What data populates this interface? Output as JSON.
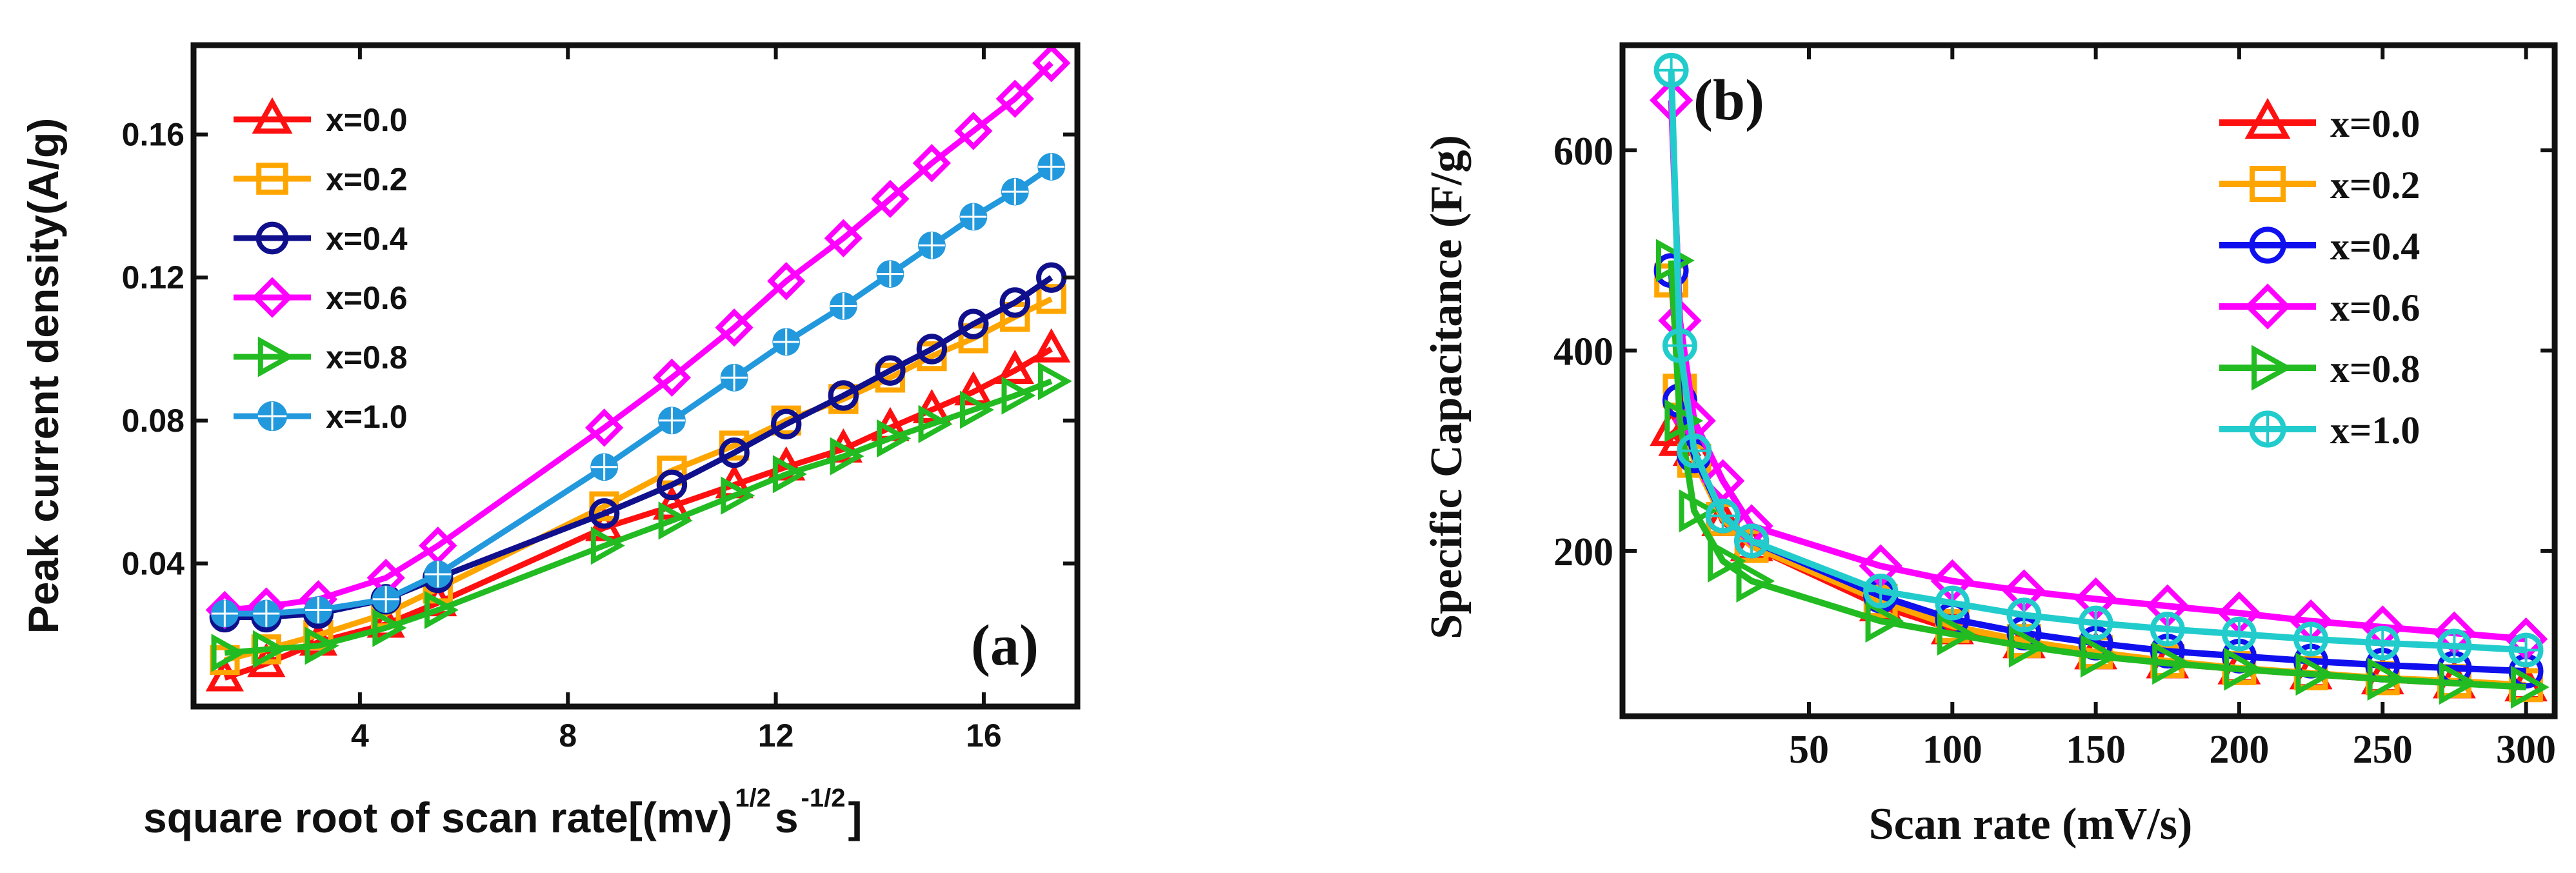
{
  "chart_data": [
    {
      "type": "line",
      "panel": "(a)",
      "title": "",
      "xlabel": "square root of scan rate[(mv)",
      "xlabel_sup1": "1/2",
      "xlabel_mid": "s",
      "xlabel_sup2": "-1/2",
      "xlabel_end": "]",
      "ylabel": "Peak current density(A/g)",
      "xlim": [
        0.8,
        17.8
      ],
      "ylim": [
        0.0,
        0.185
      ],
      "xticks": [
        4,
        8,
        12,
        16
      ],
      "yticks": [
        0.04,
        0.08,
        0.12,
        0.16
      ],
      "ytick_labels": [
        "0.04",
        "0.08",
        "0.12",
        "0.16"
      ],
      "legend_position": "top-left",
      "x": [
        1.4,
        2.2,
        3.2,
        4.5,
        5.5,
        8.7,
        10.0,
        11.2,
        12.2,
        13.3,
        14.2,
        15.0,
        15.8,
        16.6,
        17.3
      ],
      "series": [
        {
          "name": "x=0.0",
          "color": "#ff1010",
          "marker": "triangle-up",
          "values": [
            0.008,
            0.012,
            0.018,
            0.023,
            0.029,
            0.05,
            0.056,
            0.062,
            0.067,
            0.072,
            0.078,
            0.083,
            0.088,
            0.094,
            0.1
          ]
        },
        {
          "name": "x=0.2",
          "color": "#ffa500",
          "marker": "square",
          "values": [
            0.013,
            0.016,
            0.02,
            0.026,
            0.033,
            0.056,
            0.066,
            0.073,
            0.08,
            0.086,
            0.092,
            0.098,
            0.103,
            0.109,
            0.114
          ]
        },
        {
          "name": "x=0.4",
          "color": "#10108c",
          "marker": "circle",
          "values": [
            0.025,
            0.025,
            0.026,
            0.03,
            0.036,
            0.054,
            0.062,
            0.071,
            0.079,
            0.087,
            0.094,
            0.1,
            0.107,
            0.113,
            0.12
          ]
        },
        {
          "name": "x=0.6",
          "color": "#ff00ff",
          "marker": "diamond",
          "values": [
            0.027,
            0.028,
            0.03,
            0.036,
            0.045,
            0.078,
            0.092,
            0.106,
            0.119,
            0.131,
            0.142,
            0.152,
            0.161,
            0.17,
            0.18
          ]
        },
        {
          "name": "x=0.8",
          "color": "#22bb22",
          "marker": "triangle-right",
          "values": [
            0.015,
            0.016,
            0.017,
            0.022,
            0.027,
            0.045,
            0.052,
            0.059,
            0.065,
            0.07,
            0.075,
            0.079,
            0.083,
            0.087,
            0.091
          ]
        },
        {
          "name": "x=1.0",
          "color": "#2299dd",
          "marker": "circle-filled",
          "values": [
            0.026,
            0.026,
            0.027,
            0.03,
            0.037,
            0.067,
            0.08,
            0.092,
            0.102,
            0.112,
            0.121,
            0.129,
            0.137,
            0.144,
            0.151
          ]
        }
      ]
    },
    {
      "type": "line",
      "panel": "(b)",
      "title": "",
      "xlabel": "Scan rate (mV/s)",
      "ylabel": "Specific Capacitance (F/g)",
      "xlim": [
        -15,
        310
      ],
      "ylim": [
        35,
        705
      ],
      "xticks": [
        50,
        100,
        150,
        200,
        250,
        300
      ],
      "yticks": [
        200,
        400,
        600
      ],
      "legend_position": "top-right",
      "x": [
        2,
        5,
        10,
        20,
        30,
        75,
        100,
        125,
        150,
        175,
        200,
        225,
        250,
        275,
        300
      ],
      "series": [
        {
          "name": "x=0.0",
          "color": "#ff1010",
          "marker": "triangle-up",
          "values": [
            320,
            310,
            300,
            230,
            205,
            145,
            122,
            108,
            97,
            88,
            82,
            77,
            72,
            68,
            65
          ]
        },
        {
          "name": "x=0.2",
          "color": "#ffa500",
          "marker": "square",
          "values": [
            470,
            360,
            290,
            232,
            205,
            150,
            125,
            110,
            99,
            90,
            83,
            78,
            73,
            70,
            66
          ]
        },
        {
          "name": "x=0.4",
          "color": "#1010ee",
          "marker": "circle",
          "values": [
            480,
            350,
            295,
            235,
            210,
            155,
            132,
            118,
            108,
            100,
            95,
            90,
            86,
            83,
            80
          ]
        },
        {
          "name": "x=0.6",
          "color": "#ff00ff",
          "marker": "diamond",
          "values": [
            650,
            430,
            330,
            270,
            225,
            185,
            170,
            160,
            152,
            145,
            138,
            130,
            124,
            118,
            112
          ]
        },
        {
          "name": "x=0.8",
          "color": "#22bb22",
          "marker": "triangle-right",
          "values": [
            490,
            330,
            240,
            190,
            170,
            130,
            117,
            105,
            95,
            88,
            82,
            77,
            72,
            68,
            64
          ]
        },
        {
          "name": "x=1.0",
          "color": "#22cccc",
          "marker": "circle-cross",
          "values": [
            680,
            405,
            300,
            235,
            210,
            160,
            148,
            136,
            128,
            122,
            117,
            112,
            108,
            105,
            101
          ]
        }
      ]
    }
  ]
}
